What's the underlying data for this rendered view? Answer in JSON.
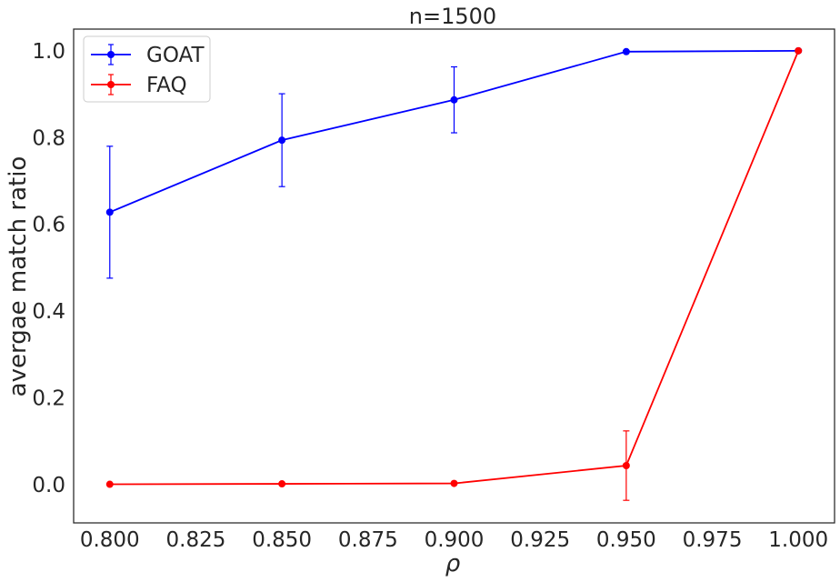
{
  "chart_data": {
    "type": "line",
    "title": "n=1500",
    "xlabel": "ρ",
    "ylabel": "avergae match ratio",
    "x": [
      0.8,
      0.85,
      0.9,
      0.95,
      1.0
    ],
    "xlim": [
      0.7895,
      1.0105
    ],
    "ylim": [
      -0.088,
      1.05
    ],
    "xticks": [
      "0.800",
      "0.825",
      "0.850",
      "0.875",
      "0.900",
      "0.925",
      "0.950",
      "0.975",
      "1.000"
    ],
    "yticks": [
      "0.0",
      "0.2",
      "0.4",
      "0.6",
      "0.8",
      "1.0"
    ],
    "grid": false,
    "legend_position": "top-left",
    "series": [
      {
        "name": "GOAT",
        "color": "#0000ff",
        "values": [
          0.628,
          0.794,
          0.887,
          0.998,
          1.0
        ],
        "errors": [
          0.152,
          0.107,
          0.076,
          0.002,
          0.0
        ]
      },
      {
        "name": "FAQ",
        "color": "#ff0000",
        "values": [
          0.001,
          0.002,
          0.003,
          0.044,
          1.0
        ],
        "errors": [
          0.0,
          0.0,
          0.0,
          0.08,
          0.0
        ]
      }
    ]
  }
}
